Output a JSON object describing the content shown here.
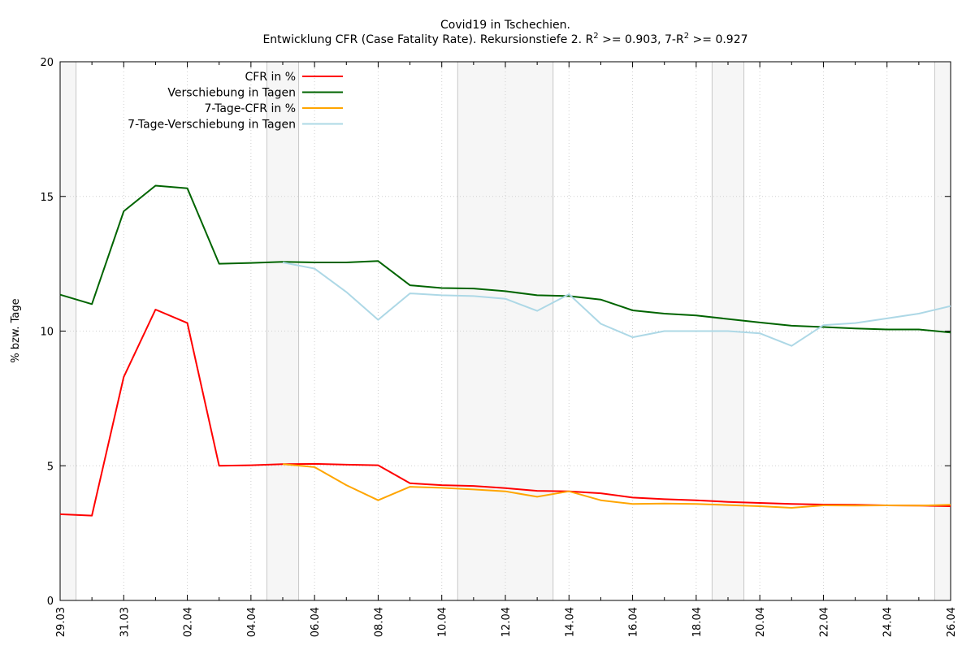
{
  "chart_data": {
    "type": "line",
    "title": "Covid19 in Tschechien.",
    "subtitle_parts": {
      "p1": "Entwicklung CFR (Case Fatality Rate). Rekursionstiefe 2. R",
      "sup1": "2",
      "p2": " >= 0.903, 7-R",
      "sup2": "2",
      "p3": " >= 0.927"
    },
    "ylabel": "% bzw. Tage",
    "xlabel": "",
    "ylim": [
      0,
      20
    ],
    "yticks": [
      "0",
      "5",
      "10",
      "15",
      "20"
    ],
    "x": [
      "29.03",
      "30.03",
      "31.03",
      "01.04",
      "02.04",
      "03.04",
      "04.04",
      "05.04",
      "06.04",
      "07.04",
      "08.04",
      "09.04",
      "10.04",
      "11.04",
      "12.04",
      "13.04",
      "14.04",
      "15.04",
      "16.04",
      "17.04",
      "18.04",
      "19.04",
      "20.04",
      "21.04",
      "22.04",
      "23.04",
      "24.04",
      "25.04",
      "26.04"
    ],
    "xtick_labels": [
      "29.03",
      "31.03",
      "02.04",
      "04.04",
      "06.04",
      "08.04",
      "10.04",
      "12.04",
      "14.04",
      "16.04",
      "18.04",
      "20.04",
      "22.04",
      "24.04",
      "26.04"
    ],
    "weekend_bands": [
      [
        "28.03",
        "29.03"
      ],
      [
        "04.04",
        "05.04"
      ],
      [
        "10.04",
        "13.04"
      ],
      [
        "18.04",
        "19.04"
      ],
      [
        "25.04",
        "26.04"
      ]
    ],
    "grid": true,
    "legend_position": "top-left",
    "series": [
      {
        "name": "CFR in %",
        "color": "#ff0000",
        "values": [
          3.2,
          3.15,
          8.3,
          10.8,
          10.3,
          5.0,
          5.02,
          5.06,
          5.07,
          5.04,
          5.02,
          4.35,
          4.28,
          4.25,
          4.17,
          4.07,
          4.05,
          3.98,
          3.82,
          3.76,
          3.72,
          3.66,
          3.62,
          3.58,
          3.56,
          3.55,
          3.53,
          3.52,
          3.5
        ]
      },
      {
        "name": "Verschiebung in Tagen",
        "color": "#006400",
        "values": [
          11.35,
          11.0,
          14.45,
          15.4,
          15.3,
          12.5,
          12.53,
          12.57,
          12.55,
          12.55,
          12.6,
          11.7,
          11.6,
          11.58,
          11.48,
          11.33,
          11.3,
          11.17,
          10.77,
          10.65,
          10.58,
          10.45,
          10.32,
          10.2,
          10.15,
          10.1,
          10.06,
          10.06,
          9.95
        ]
      },
      {
        "name": "7-Tage-CFR in %",
        "color": "#ffa500",
        "values": [
          null,
          null,
          null,
          null,
          null,
          null,
          null,
          5.06,
          4.95,
          4.28,
          3.72,
          4.22,
          4.18,
          4.12,
          4.05,
          3.85,
          4.05,
          3.72,
          3.58,
          3.6,
          3.58,
          3.54,
          3.5,
          3.44,
          3.53,
          3.52,
          3.53,
          3.52,
          3.55
        ]
      },
      {
        "name": "7-Tage-Verschiebung in Tagen",
        "color": "#add8e6",
        "values": [
          null,
          null,
          null,
          null,
          null,
          null,
          null,
          12.55,
          12.32,
          11.45,
          10.42,
          11.4,
          11.33,
          11.3,
          11.2,
          10.75,
          11.37,
          10.27,
          9.77,
          10.0,
          10.0,
          10.0,
          9.92,
          9.45,
          10.22,
          10.3,
          10.47,
          10.65,
          10.93
        ]
      }
    ]
  }
}
